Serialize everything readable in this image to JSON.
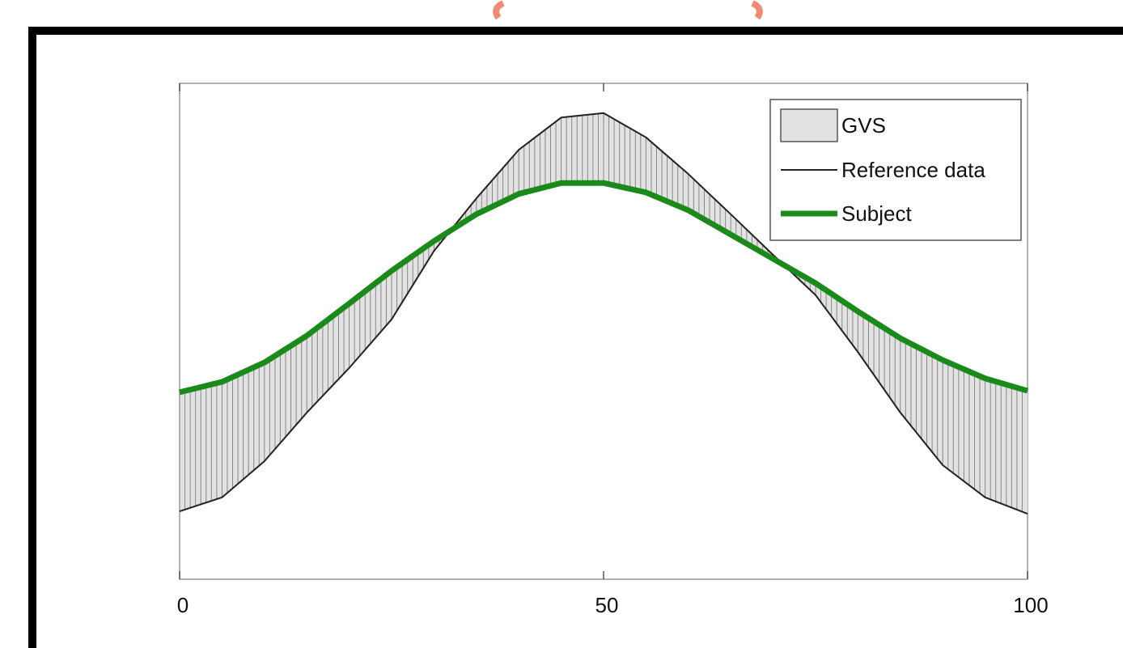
{
  "chart_data": {
    "type": "line",
    "x": [
      0,
      5,
      10,
      15,
      20,
      25,
      30,
      35,
      40,
      45,
      50,
      55,
      60,
      65,
      70,
      75,
      80,
      85,
      90,
      95,
      100
    ],
    "series": [
      {
        "name": "Reference data",
        "color": "#222222",
        "values": [
          13.7,
          16.5,
          23.8,
          33.6,
          42.6,
          52.4,
          66.2,
          76.8,
          86.6,
          93.1,
          94.0,
          89.1,
          81.7,
          73.6,
          65.4,
          57.3,
          45.8,
          33.6,
          23.0,
          16.5,
          13.2
        ]
      },
      {
        "name": "Subject",
        "color": "#1a8a1a",
        "values": [
          37.7,
          39.8,
          43.7,
          49.1,
          55.6,
          62.2,
          68.2,
          73.6,
          77.7,
          79.9,
          79.9,
          78.0,
          74.4,
          69.5,
          64.6,
          59.7,
          54.0,
          48.6,
          44.2,
          40.5,
          38.0
        ]
      }
    ],
    "area": {
      "name": "GVS",
      "color": "#e2e2e2"
    },
    "xlim": [
      0,
      100
    ],
    "xticks": [
      0,
      50,
      100
    ],
    "ylim": [
      0,
      100
    ]
  }
}
